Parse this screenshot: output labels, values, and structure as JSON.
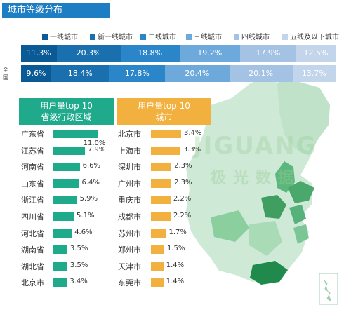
{
  "title": "城市等级分布",
  "legend_colors": [
    "#0a5a96",
    "#1a6fae",
    "#2a86c9",
    "#6ea9db",
    "#a3c2e4",
    "#c3d5ea"
  ],
  "row_labels": [
    "",
    "全国"
  ],
  "chart_data": [
    {
      "type": "bar",
      "subtype": "stacked-100",
      "categories": [
        "一线城市",
        "新一线城市",
        "二线城市",
        "三线城市",
        "四线城市",
        "五线及以下城市"
      ],
      "series": [
        {
          "name": "",
          "values": [
            11.3,
            20.3,
            18.8,
            19.2,
            17.9,
            12.5
          ],
          "labels": [
            "11.3%",
            "20.3%",
            "18.8%",
            "19.2%",
            "17.9%",
            "12.5%"
          ]
        },
        {
          "name": "",
          "values": [
            9.6,
            18.4,
            17.8,
            20.4,
            20.1,
            13.7
          ],
          "labels": [
            "9.6%",
            "18.4%",
            "17.8%",
            "20.4%",
            "20.1%",
            "13.7%"
          ]
        }
      ],
      "legend_position": "top"
    },
    {
      "type": "bar",
      "orientation": "horizontal",
      "title": "用户量top 10 省级行政区域",
      "categories": [
        "广东省",
        "江苏省",
        "河南省",
        "山东省",
        "浙江省",
        "四川省",
        "河北省",
        "湖南省",
        "湖北省",
        "北京市"
      ],
      "values": [
        11.0,
        7.9,
        6.6,
        6.4,
        5.9,
        5.1,
        4.6,
        3.5,
        3.5,
        3.4
      ],
      "labels": [
        "11.0%",
        "7.9%",
        "6.6%",
        "6.4%",
        "5.9%",
        "5.1%",
        "4.6%",
        "3.5%",
        "3.5%",
        "3.4%"
      ],
      "color": "#1faa8c"
    },
    {
      "type": "bar",
      "orientation": "horizontal",
      "title": "用户量top 10 城市",
      "categories": [
        "北京市",
        "上海市",
        "深圳市",
        "广州市",
        "重庆市",
        "成都市",
        "苏州市",
        "郑州市",
        "天津市",
        "东莞市"
      ],
      "values": [
        3.4,
        3.3,
        2.3,
        2.3,
        2.2,
        2.2,
        1.7,
        1.5,
        1.4,
        1.4
      ],
      "labels": [
        "3.4%",
        "3.3%",
        "2.3%",
        "2.3%",
        "2.2%",
        "2.2%",
        "1.7%",
        "1.5%",
        "1.4%",
        "1.4%"
      ],
      "color": "#f2b03e"
    }
  ],
  "panel_left_header": [
    "用户量top 10",
    "省级行政区域"
  ],
  "panel_right_header": [
    "用户量top 10",
    "城市"
  ],
  "watermark": "JIGUANG",
  "watermark_cn": "极光数据"
}
